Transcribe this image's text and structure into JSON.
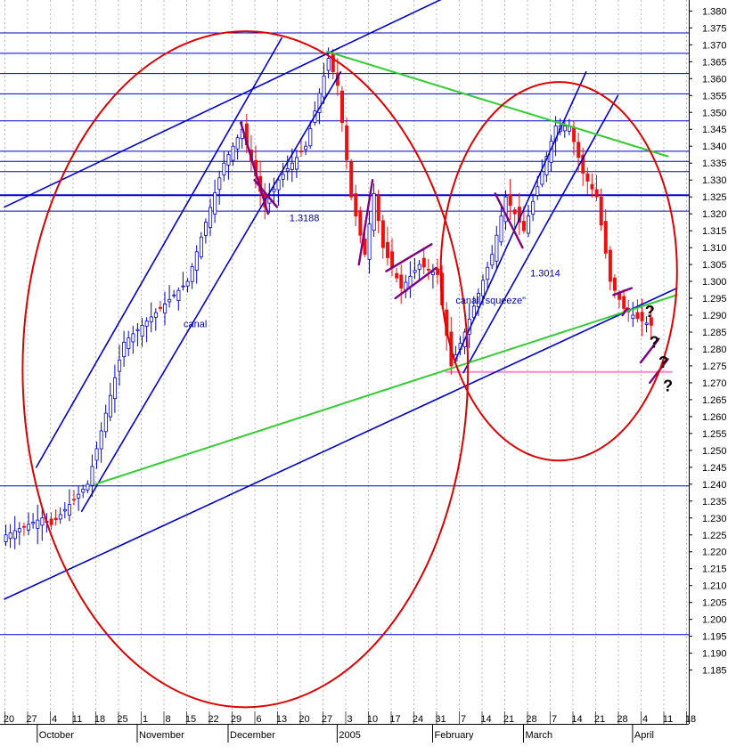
{
  "chart_data": {
    "type": "candlestick",
    "title": "",
    "ylim": [
      1.18,
      1.385
    ],
    "y_ticks": [
      "1.185",
      "1.190",
      "1.195",
      "1.200",
      "1.205",
      "1.210",
      "1.215",
      "1.220",
      "1.225",
      "1.230",
      "1.235",
      "1.240",
      "1.245",
      "1.250",
      "1.255",
      "1.260",
      "1.265",
      "1.270",
      "1.275",
      "1.280",
      "1.285",
      "1.290",
      "1.295",
      "1.300",
      "1.305",
      "1.310",
      "1.315",
      "1.320",
      "1.325",
      "1.330",
      "1.335",
      "1.340",
      "1.345",
      "1.350",
      "1.355",
      "1.360",
      "1.365",
      "1.370",
      "1.375",
      "1.380"
    ],
    "x_ticks": [
      {
        "label": "20",
        "i": 0
      },
      {
        "label": "27",
        "i": 5
      },
      {
        "label": "4",
        "i": 10
      },
      {
        "label": "11",
        "i": 15
      },
      {
        "label": "18",
        "i": 20
      },
      {
        "label": "25",
        "i": 25
      },
      {
        "label": "1",
        "i": 30
      },
      {
        "label": "8",
        "i": 35
      },
      {
        "label": "15",
        "i": 40
      },
      {
        "label": "22",
        "i": 45
      },
      {
        "label": "29",
        "i": 50
      },
      {
        "label": "6",
        "i": 55
      },
      {
        "label": "13",
        "i": 60
      },
      {
        "label": "20",
        "i": 65
      },
      {
        "label": "27",
        "i": 70
      },
      {
        "label": "3",
        "i": 75
      },
      {
        "label": "10",
        "i": 80
      },
      {
        "label": "17",
        "i": 85
      },
      {
        "label": "24",
        "i": 90
      },
      {
        "label": "31",
        "i": 95
      },
      {
        "label": "7",
        "i": 100
      },
      {
        "label": "14",
        "i": 105
      },
      {
        "label": "21",
        "i": 110
      },
      {
        "label": "28",
        "i": 115
      },
      {
        "label": "7",
        "i": 120
      },
      {
        "label": "14",
        "i": 125
      },
      {
        "label": "21",
        "i": 130
      },
      {
        "label": "28",
        "i": 135
      },
      {
        "label": "4",
        "i": 140
      },
      {
        "label": "11",
        "i": 145
      },
      {
        "label": "18",
        "i": 150
      }
    ],
    "month_labels": [
      {
        "label": "October",
        "i": 8
      },
      {
        "label": "November",
        "i": 30
      },
      {
        "label": "December",
        "i": 50
      },
      {
        "label": "2005",
        "i": 74
      },
      {
        "label": "February",
        "i": 95
      },
      {
        "label": "March",
        "i": 115
      },
      {
        "label": "April",
        "i": 139
      }
    ],
    "key_points": [
      {
        "i": 0,
        "p": 1.225
      },
      {
        "i": 8,
        "p": 1.23
      },
      {
        "i": 10,
        "p": 1.228
      },
      {
        "i": 18,
        "p": 1.24
      },
      {
        "i": 26,
        "p": 1.282
      },
      {
        "i": 34,
        "p": 1.292
      },
      {
        "i": 40,
        "p": 1.3
      },
      {
        "i": 48,
        "p": 1.335
      },
      {
        "i": 52,
        "p": 1.345
      },
      {
        "i": 57,
        "p": 1.322
      },
      {
        "i": 60,
        "p": 1.33
      },
      {
        "i": 66,
        "p": 1.34
      },
      {
        "i": 71,
        "p": 1.366
      },
      {
        "i": 73,
        "p": 1.358
      },
      {
        "i": 76,
        "p": 1.325
      },
      {
        "i": 79,
        "p": 1.308
      },
      {
        "i": 81,
        "p": 1.326
      },
      {
        "i": 83,
        "p": 1.31
      },
      {
        "i": 87,
        "p": 1.298
      },
      {
        "i": 91,
        "p": 1.305
      },
      {
        "i": 95,
        "p": 1.302
      },
      {
        "i": 98,
        "p": 1.275
      },
      {
        "i": 101,
        "p": 1.285
      },
      {
        "i": 107,
        "p": 1.308
      },
      {
        "i": 110,
        "p": 1.325
      },
      {
        "i": 114,
        "p": 1.315
      },
      {
        "i": 117,
        "p": 1.328
      },
      {
        "i": 121,
        "p": 1.346
      },
      {
        "i": 124,
        "p": 1.346
      },
      {
        "i": 127,
        "p": 1.332
      },
      {
        "i": 130,
        "p": 1.325
      },
      {
        "i": 133,
        "p": 1.3
      },
      {
        "i": 136,
        "p": 1.292
      },
      {
        "i": 139,
        "p": 1.289
      },
      {
        "i": 142,
        "p": 1.287
      }
    ],
    "horizontal_levels": [
      1.3735,
      1.3675,
      1.3615,
      1.3555,
      1.3475,
      1.3385,
      1.3355,
      1.3325,
      1.3255,
      1.3208,
      1.2395,
      1.1955
    ],
    "support_level": {
      "price": 1.2732,
      "from_i": 97,
      "to_i": 147
    },
    "trendlines": {
      "blue": [
        {
          "from": [
            7,
            1.245
          ],
          "to": [
            61,
            1.372
          ]
        },
        {
          "from": [
            17,
            1.232
          ],
          "to": [
            74,
            1.362
          ]
        },
        {
          "from": [
            0,
            1.322
          ],
          "to": [
            97,
            1.384
          ]
        },
        {
          "from": [
            0,
            1.206
          ],
          "to": [
            148,
            1.298
          ]
        },
        {
          "from": [
            99,
            1.276
          ],
          "to": [
            128,
            1.362
          ]
        },
        {
          "from": [
            101,
            1.273
          ],
          "to": [
            135,
            1.355
          ]
        }
      ],
      "green": [
        {
          "from": [
            20,
            1.24
          ],
          "to": [
            148,
            1.296
          ]
        },
        {
          "from": [
            71,
            1.368
          ],
          "to": [
            146,
            1.337
          ]
        }
      ],
      "purple": [
        {
          "from": [
            52,
            1.347
          ],
          "to": [
            58,
            1.32
          ]
        },
        {
          "from": [
            55,
            1.33
          ],
          "to": [
            60,
            1.322
          ]
        },
        {
          "from": [
            78,
            1.305
          ],
          "to": [
            81,
            1.33
          ]
        },
        {
          "from": [
            84,
            1.303
          ],
          "to": [
            94,
            1.311
          ]
        },
        {
          "from": [
            86,
            1.295
          ],
          "to": [
            95,
            1.304
          ]
        },
        {
          "from": [
            108,
            1.326
          ],
          "to": [
            114,
            1.31
          ]
        },
        {
          "from": [
            134,
            1.296
          ],
          "to": [
            138,
            1.298
          ]
        },
        {
          "from": [
            136,
            1.29
          ],
          "to": [
            137,
            1.292
          ]
        },
        {
          "from": [
            140,
            1.276
          ],
          "to": [
            144,
            1.283
          ]
        },
        {
          "from": [
            142,
            1.27
          ],
          "to": [
            146,
            1.277
          ]
        }
      ]
    },
    "ellipses": [
      {
        "center": [
          53,
          1.274
        ],
        "rx_bars": 49,
        "ry_price": 0.1
      },
      {
        "center": [
          122,
          1.303
        ],
        "rx_bars": 26,
        "ry_price": 0.056
      }
    ],
    "annotations": [
      {
        "text": "1.3188",
        "i": 66,
        "p": 1.3188
      },
      {
        "text": "canal",
        "i": 42,
        "p": 1.2875
      },
      {
        "text": "canal \"squeeze\"",
        "i": 107,
        "p": 1.2945
      },
      {
        "text": "1.3014",
        "i": 119,
        "p": 1.3025
      },
      {
        "text": "?",
        "i": 142,
        "p": 1.2905
      },
      {
        "text": "?",
        "i": 143,
        "p": 1.2815
      },
      {
        "text": "?",
        "i": 145,
        "p": 1.2755
      },
      {
        "text": "?",
        "i": 146,
        "p": 1.2685
      }
    ]
  },
  "colors": {
    "background": "#ffffff",
    "grid": "#b8b8b8",
    "up_candle": "#0000cc",
    "down_candle": "#ee1111",
    "blue_line": "#0000cc",
    "green_line": "#33cc33",
    "purple_line": "#800080",
    "red_ellipse": "#dd0000",
    "pink_line": "#ff88cc",
    "annotation_text": "#0000aa"
  }
}
